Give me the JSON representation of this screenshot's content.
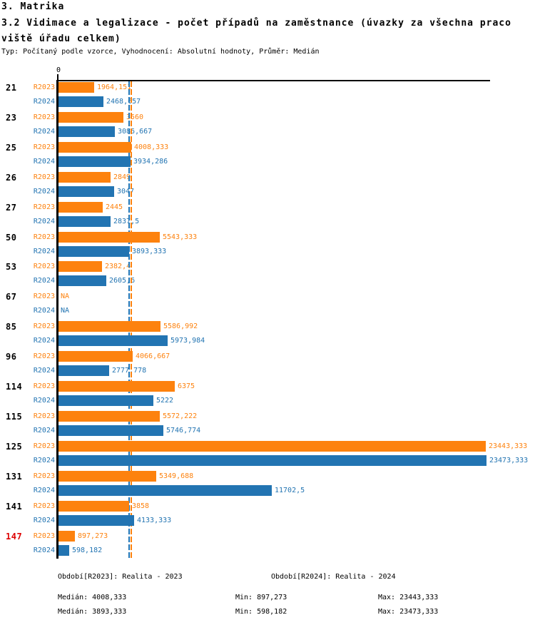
{
  "header": {
    "section_title": "3. Matrika",
    "title_line1": "3.2 Vidimace a legalizace - počet případů na zaměstnance (úvazky za všechna praco",
    "title_line2": "viště úřadu celkem)",
    "meta": "Typ: Počítaný podle vzorce, Vyhodnocení: Absolutní hodnoty, Průměr: Medián"
  },
  "chart_data": {
    "type": "bar",
    "orientation": "horizontal",
    "title": "3.2 Vidimace a legalizace - počet případů na zaměstnance (úvazky za všechna pracoviště úřadu celkem)",
    "x_axis": {
      "zero_label": "0",
      "xlim": [
        0,
        23675
      ],
      "grid": false
    },
    "legend_position": "bottom",
    "series": [
      {
        "id": "r2023",
        "label": "R2023",
        "color": "#fd820e",
        "legend": "Období[R2023]: Realita - 2023",
        "median": 4008.333
      },
      {
        "id": "r2024",
        "label": "R2024",
        "color": "#2274b2",
        "legend": "Období[R2024]: Realita - 2024",
        "median": 3893.333
      }
    ],
    "categories": [
      "21",
      "23",
      "25",
      "26",
      "27",
      "50",
      "53",
      "67",
      "85",
      "96",
      "114",
      "115",
      "125",
      "131",
      "141",
      "147"
    ],
    "rows": [
      {
        "category": "21",
        "values": [
          1964.151,
          2468.657
        ],
        "labels": [
          "1964,151",
          "2468,657"
        ]
      },
      {
        "category": "23",
        "values": [
          3560,
          3086.667
        ],
        "labels": [
          "3560",
          "3086,667"
        ]
      },
      {
        "category": "25",
        "values": [
          4008.333,
          3934.286
        ],
        "labels": [
          "4008,333",
          "3934,286"
        ]
      },
      {
        "category": "26",
        "values": [
          2849,
          3047
        ],
        "labels": [
          "2849",
          "3047"
        ]
      },
      {
        "category": "27",
        "values": [
          2445,
          2837.5
        ],
        "labels": [
          "2445",
          "2837,5"
        ]
      },
      {
        "category": "50",
        "values": [
          5543.333,
          3893.333
        ],
        "labels": [
          "5543,333",
          "3893,333"
        ]
      },
      {
        "category": "53",
        "values": [
          2382.4,
          2605.6
        ],
        "labels": [
          "2382,4",
          "2605,6"
        ]
      },
      {
        "category": "67",
        "values": [
          null,
          null
        ],
        "labels": [
          "NA",
          "NA"
        ]
      },
      {
        "category": "85",
        "values": [
          5586.992,
          5973.984
        ],
        "labels": [
          "5586,992",
          "5973,984"
        ]
      },
      {
        "category": "96",
        "values": [
          4066.667,
          2777.778
        ],
        "labels": [
          "4066,667",
          "2777,778"
        ]
      },
      {
        "category": "114",
        "values": [
          6375,
          5222
        ],
        "labels": [
          "6375",
          "5222"
        ]
      },
      {
        "category": "115",
        "values": [
          5572.222,
          5746.774
        ],
        "labels": [
          "5572,222",
          "5746,774"
        ]
      },
      {
        "category": "125",
        "values": [
          23443.333,
          23473.333
        ],
        "labels": [
          "23443,333",
          "23473,333"
        ]
      },
      {
        "category": "131",
        "values": [
          5349.688,
          11702.5
        ],
        "labels": [
          "5349,688",
          "11702,5"
        ]
      },
      {
        "category": "141",
        "values": [
          3858,
          4133.333
        ],
        "labels": [
          "3858",
          "4133,333"
        ]
      },
      {
        "category": "147",
        "values": [
          897.273,
          598.182
        ],
        "labels": [
          "897,273",
          "598,182"
        ],
        "highlight": true
      }
    ],
    "highlight_category": {
      "category": "147",
      "color": "#dd0000"
    },
    "stats": {
      "r2023": {
        "median": 4008.333,
        "min": 897.273,
        "max": 23443.333
      },
      "r2024": {
        "median": 3893.333,
        "min": 598.182,
        "max": 23473.333
      }
    }
  },
  "footer": {
    "legend_2023": "Období[R2023]: Realita - 2023",
    "legend_2024": "Období[R2024]: Realita - 2024",
    "stats_2023": {
      "median": "Medián: 4008,333",
      "min": "Min: 897,273",
      "max": "Max: 23443,333"
    },
    "stats_2024": {
      "median": "Medián: 3893,333",
      "min": "Min: 598,182",
      "max": "Max: 23473,333"
    }
  }
}
